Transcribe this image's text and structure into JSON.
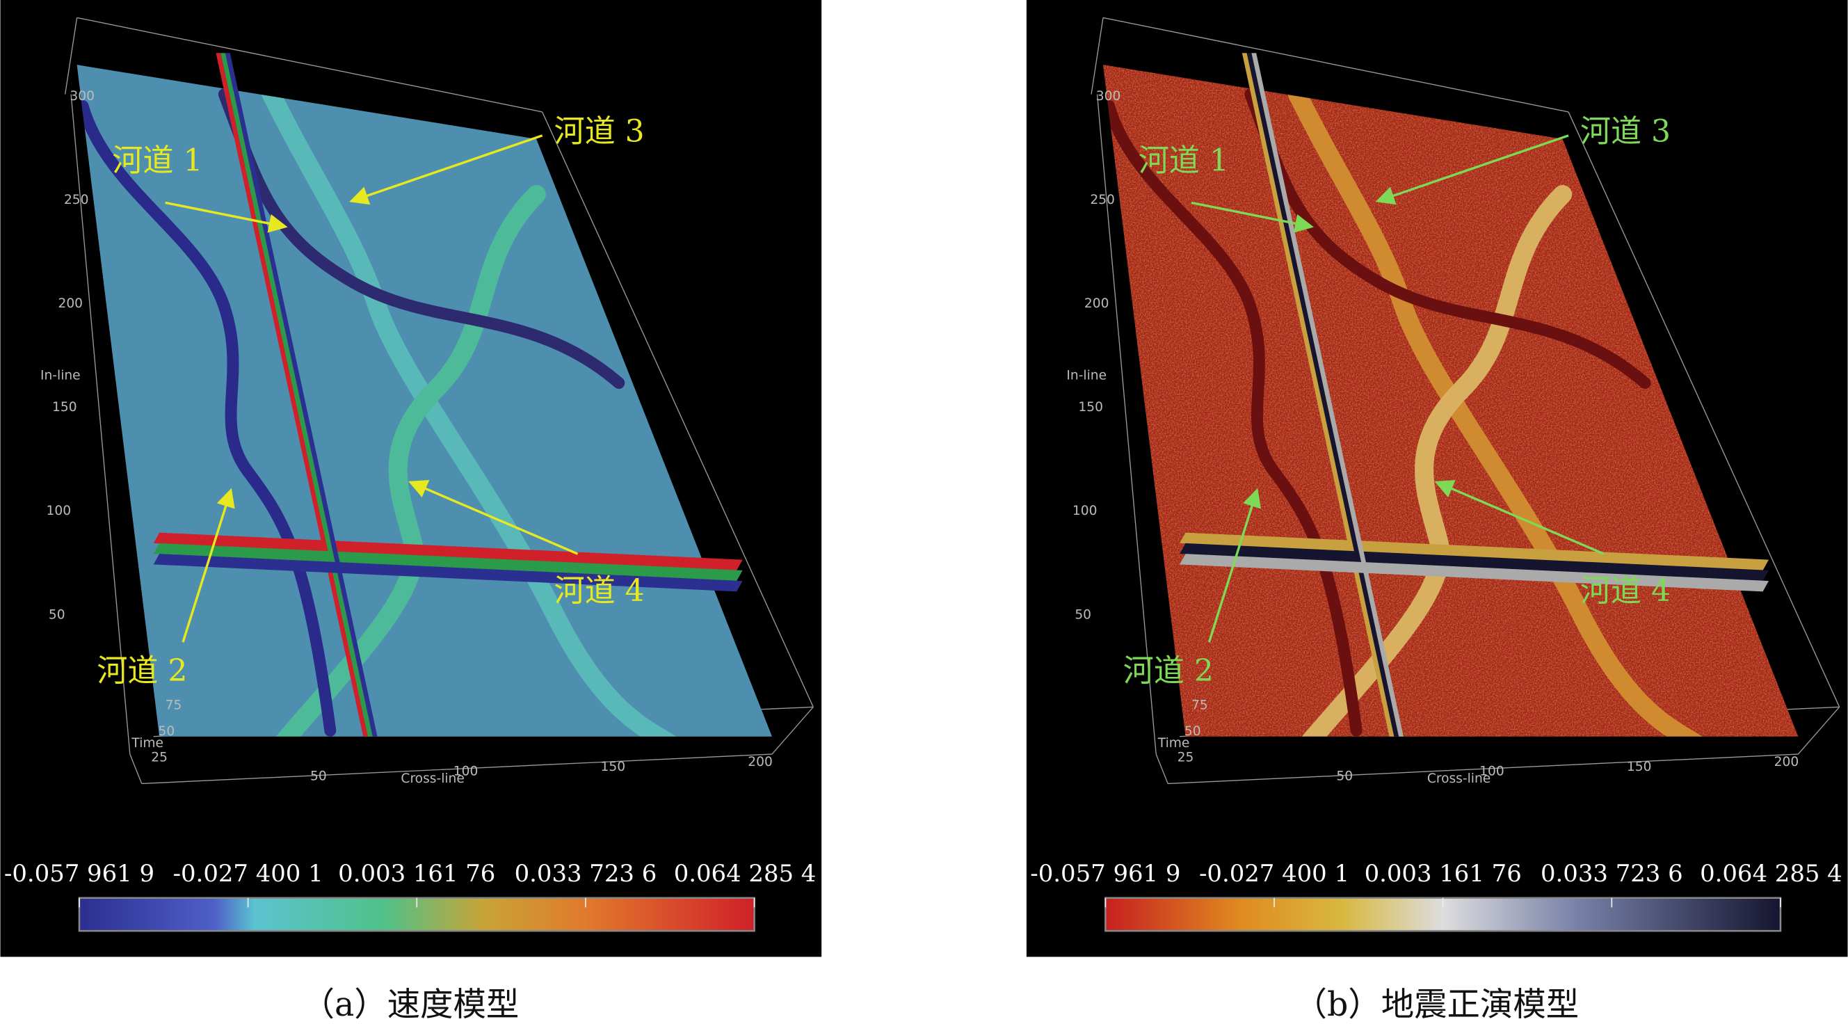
{
  "panels": [
    {
      "caption": "（a）速度模型",
      "labels": [
        "河道 1",
        "河道 2",
        "河道 3",
        "河道 4"
      ],
      "axis_titles": {
        "inline": "In-line",
        "crossline": "Cross-line",
        "time": "Time"
      },
      "inline_ticks": [
        "50",
        "100",
        "150",
        "200",
        "250",
        "300"
      ],
      "crossline_ticks": [
        "50",
        "100",
        "150",
        "200"
      ],
      "time_ticks": [
        "25",
        "50",
        "75"
      ],
      "colorbar_ticks": [
        "-0.057 961 9",
        "-0.027 400 1",
        "0.003 161 76",
        "0.033 723 6",
        "0.064 285 4"
      ]
    },
    {
      "caption": "（b）地震正演模型",
      "labels": [
        "河道 1",
        "河道 2",
        "河道 3",
        "河道 4"
      ],
      "axis_titles": {
        "inline": "In-line",
        "crossline": "Cross-line",
        "time": "Time"
      },
      "inline_ticks": [
        "50",
        "100",
        "150",
        "200",
        "250",
        "300"
      ],
      "crossline_ticks": [
        "50",
        "100",
        "150",
        "200"
      ],
      "time_ticks": [
        "25",
        "50",
        "75"
      ],
      "colorbar_ticks": [
        "-0.057 961 9",
        "-0.027 400 1",
        "0.003 161 76",
        "0.033 723 6",
        "0.064 285 4"
      ]
    }
  ]
}
